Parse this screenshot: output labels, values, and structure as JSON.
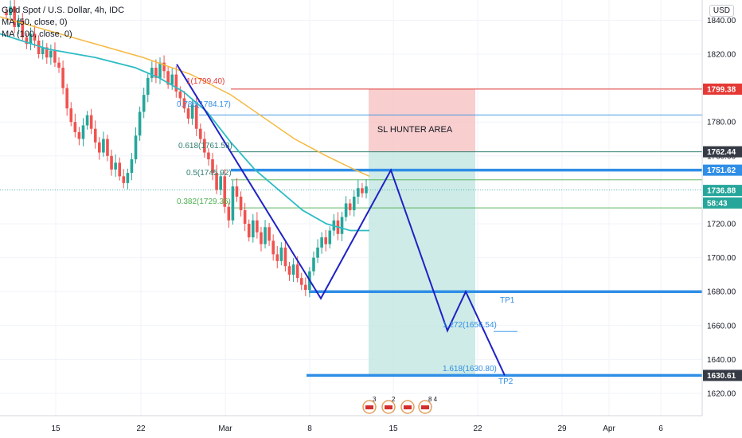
{
  "legend": {
    "symbol": "Gold Spot / U.S. Dollar, 4h, IDC",
    "ma50": "MA (50, close, 0)",
    "ma100": "MA (100, close, 0)"
  },
  "currency_button": "USD",
  "colors": {
    "up": "#26a69a",
    "down": "#ef5350",
    "ma50": "#2ebcc4",
    "ma100": "#f5b942",
    "pattern": "#1e22c4",
    "level_blue": "#2f8ee6",
    "fib_green": "#4caf50",
    "sl_red": "#e53935",
    "zone_red": "#f7c5c5",
    "zone_green": "#c6e8e3"
  },
  "chart_data": {
    "type": "candlestick",
    "y_axis_ticks": [
      "1620.00",
      "1640.00",
      "1660.00",
      "1680.00",
      "1700.00",
      "1720.00",
      "1740.00",
      "1760.00",
      "1780.00",
      "1800.00",
      "1820.00",
      "1840.00"
    ],
    "x_axis_ticks": [
      "15",
      "22",
      "Mar",
      "8",
      "15",
      "22",
      "29",
      "Apr",
      "6"
    ],
    "ylim": [
      1612,
      1846
    ],
    "ohlc_path_closes": [
      1843,
      1848,
      1836,
      1840,
      1830,
      1826,
      1832,
      1828,
      1820,
      1824,
      1818,
      1822,
      1815,
      1812,
      1800,
      1788,
      1780,
      1774,
      1770,
      1778,
      1784,
      1776,
      1768,
      1762,
      1770,
      1760,
      1752,
      1756,
      1748,
      1744,
      1750,
      1758,
      1772,
      1786,
      1796,
      1806,
      1812,
      1806,
      1815,
      1810,
      1802,
      1808,
      1798,
      1794,
      1788,
      1782,
      1790,
      1776,
      1770,
      1762,
      1758,
      1750,
      1740,
      1748,
      1730,
      1722,
      1742,
      1736,
      1728,
      1720,
      1712,
      1722,
      1715,
      1708,
      1718,
      1710,
      1702,
      1698,
      1706,
      1695,
      1690,
      1696,
      1688,
      1684,
      1681,
      1692,
      1700,
      1706,
      1712,
      1708,
      1716,
      1722,
      1714,
      1724,
      1732,
      1728,
      1736,
      1741,
      1738,
      1742
    ],
    "price_labels": {
      "sl": "1799.38",
      "fib618_level": "1762.44",
      "entry": "1751.62",
      "current": "1736.88",
      "countdown": "58:43",
      "tp2": "1630.61"
    },
    "fib_labels": {
      "f1": "1(1799.40)",
      "f786": "0.786(1784.17)",
      "f618": "0.618(1761.53)",
      "f05": "0.5(1745.92)",
      "f382": "0.382(1729.36)",
      "e1272": "1.272(1656.54)",
      "e1618": "1.618(1630.80)"
    },
    "zone_text": "SL HUNTER AREA",
    "tp1_text": "TP1",
    "tp2_text": "TP2",
    "event_badges": [
      "3",
      "2",
      "8 4"
    ]
  }
}
